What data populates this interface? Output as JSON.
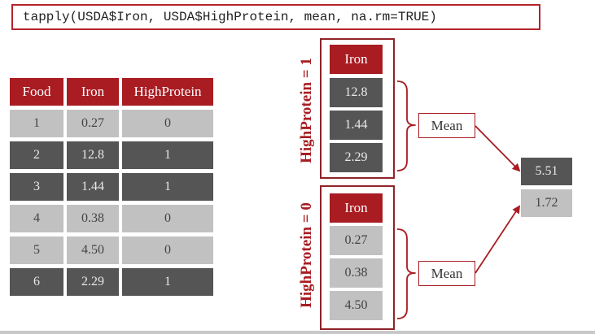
{
  "code": "tapply(USDA$Iron, USDA$HighProtein, mean, na.rm=TRUE)",
  "table": {
    "headers": [
      "Food",
      "Iron",
      "HighProtein"
    ],
    "rows": [
      [
        "1",
        "0.27",
        "0"
      ],
      [
        "2",
        "12.8",
        "1"
      ],
      [
        "3",
        "1.44",
        "1"
      ],
      [
        "4",
        "0.38",
        "0"
      ],
      [
        "5",
        "4.50",
        "0"
      ],
      [
        "6",
        "2.29",
        "1"
      ]
    ]
  },
  "groups": [
    {
      "label": "HighProtein = 1",
      "header": "Iron",
      "values": [
        "12.8",
        "1.44",
        "2.29"
      ]
    },
    {
      "label": "HighProtein = 0",
      "header": "Iron",
      "values": [
        "0.27",
        "0.38",
        "4.50"
      ]
    }
  ],
  "mean_label": "Mean",
  "results": [
    "5.51",
    "1.72"
  ],
  "colors": {
    "accent": "#a81c22",
    "dark_cell": "#555555",
    "light_cell": "#c1c1c1"
  }
}
